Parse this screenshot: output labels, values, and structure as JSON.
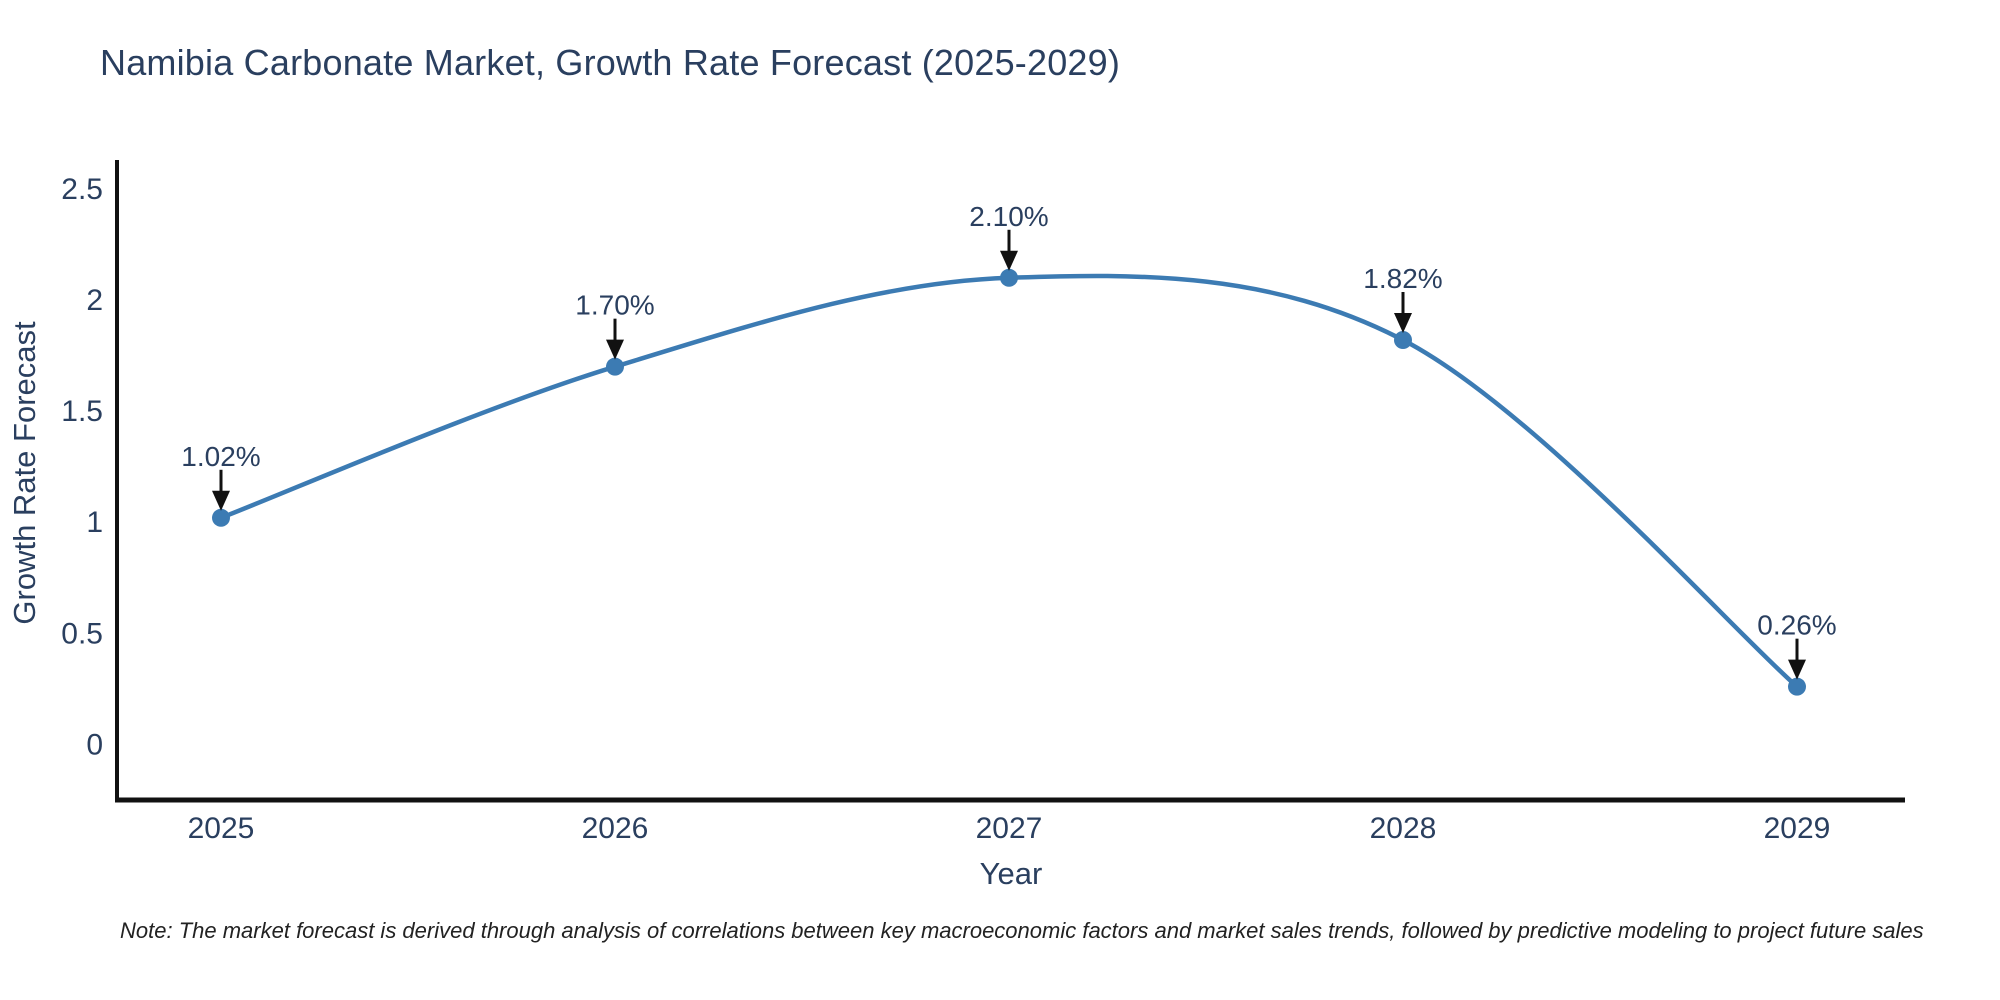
{
  "title": "Namibia Carbonate Market, Growth Rate Forecast (2025-2029)",
  "note": "Note: The market forecast is derived through analysis of correlations between key macroeconomic factors and market sales trends, followed by predictive modeling to project future sales",
  "chart_data": {
    "type": "line",
    "categories": [
      "2025",
      "2026",
      "2027",
      "2028",
      "2029"
    ],
    "values": [
      1.02,
      1.7,
      2.1,
      1.82,
      0.26
    ],
    "point_labels": [
      "1.02%",
      "1.70%",
      "2.10%",
      "1.82%",
      "0.26%"
    ],
    "title": "Namibia Carbonate Market, Growth Rate Forecast (2025-2029)",
    "xlabel": "Year",
    "ylabel": "Growth Rate Forecast",
    "yticks": [
      0,
      0.5,
      1,
      1.5,
      2,
      2.5
    ],
    "ylim": [
      -0.25,
      2.63
    ],
    "line_shape": "spline",
    "grid": false,
    "legend": "none",
    "colors": {
      "line": "#3c7bb3",
      "marker": "#3c7bb3",
      "arrow": "#111111",
      "axis": "#111111",
      "text": "#2a3f5f",
      "note_text": "#222222"
    }
  }
}
